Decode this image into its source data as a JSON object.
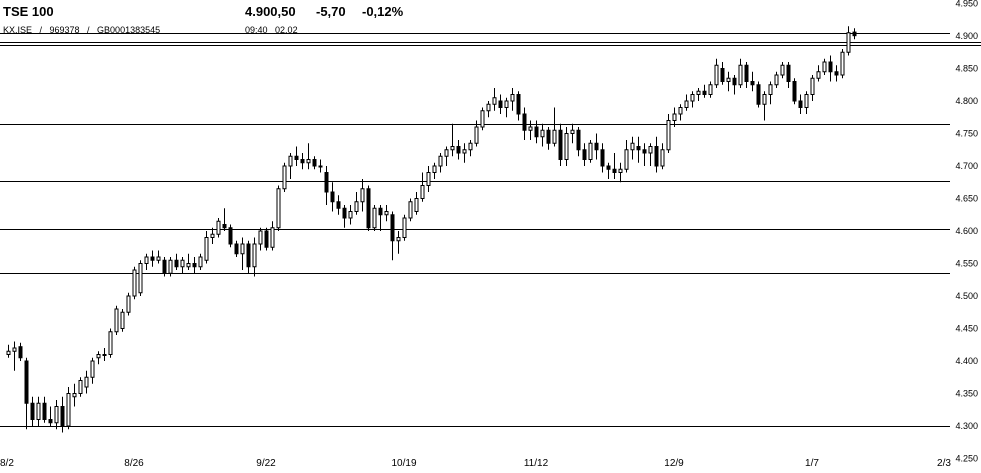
{
  "header": {
    "title": "TSE 100",
    "last": "4.900,50",
    "change": "-5,70",
    "change_pct": "-0,12%",
    "codes": "KX.ISE   /   969378   /   GB0001383545",
    "time": "09:40",
    "date": "02.02"
  },
  "chart_data": {
    "type": "candlestick",
    "title": "",
    "xlabel": "",
    "ylabel": "",
    "ylim": [
      4250,
      4975
    ],
    "y_ticks": [
      4250,
      4300,
      4350,
      4400,
      4450,
      4500,
      4550,
      4600,
      4650,
      4700,
      4750,
      4800,
      4850,
      4900,
      4950
    ],
    "y_tick_labels": [
      "4.250",
      "4.300",
      "4.350",
      "4.400",
      "4.450",
      "4.500",
      "4.550",
      "4.600",
      "4.650",
      "4.700",
      "4.750",
      "4.800",
      "4.850",
      "4.900",
      "4.950"
    ],
    "x_tick_labels": [
      "8/2",
      "8/26",
      "9/22",
      "10/19",
      "11/12",
      "12/9",
      "1/7",
      "2/3"
    ],
    "x_tick_index": [
      0,
      21,
      43,
      66,
      88,
      111,
      134,
      157
    ],
    "horizontal_levels": [
      4300,
      4535,
      4603,
      4677,
      4765,
      4905
    ],
    "last_close": 4900.5,
    "series": [
      {
        "name": "",
        "ohlc": [
          [
            4410,
            4425,
            4405,
            4415
          ],
          [
            4415,
            4430,
            4385,
            4420
          ],
          [
            4422,
            4428,
            4400,
            4405
          ],
          [
            4400,
            4405,
            4295,
            4335
          ],
          [
            4335,
            4345,
            4300,
            4310
          ],
          [
            4310,
            4345,
            4300,
            4335
          ],
          [
            4335,
            4345,
            4305,
            4310
          ],
          [
            4310,
            4330,
            4300,
            4305
          ],
          [
            4305,
            4340,
            4295,
            4330
          ],
          [
            4330,
            4345,
            4290,
            4300
          ],
          [
            4300,
            4360,
            4295,
            4350
          ],
          [
            4345,
            4365,
            4330,
            4350
          ],
          [
            4350,
            4375,
            4345,
            4370
          ],
          [
            4360,
            4385,
            4350,
            4375
          ],
          [
            4375,
            4405,
            4365,
            4400
          ],
          [
            4405,
            4415,
            4395,
            4410
          ],
          [
            4410,
            4420,
            4400,
            4410
          ],
          [
            4410,
            4450,
            4405,
            4445
          ],
          [
            4445,
            4485,
            4440,
            4480
          ],
          [
            4450,
            4480,
            4445,
            4475
          ],
          [
            4475,
            4505,
            4470,
            4500
          ],
          [
            4500,
            4545,
            4495,
            4540
          ],
          [
            4505,
            4555,
            4500,
            4550
          ],
          [
            4550,
            4565,
            4540,
            4560
          ],
          [
            4560,
            4570,
            4545,
            4555
          ],
          [
            4555,
            4570,
            4550,
            4560
          ],
          [
            4555,
            4560,
            4530,
            4535
          ],
          [
            4535,
            4560,
            4530,
            4555
          ],
          [
            4555,
            4565,
            4540,
            4545
          ],
          [
            4545,
            4560,
            4535,
            4555
          ],
          [
            4545,
            4565,
            4540,
            4550
          ],
          [
            4550,
            4560,
            4535,
            4545
          ],
          [
            4545,
            4565,
            4540,
            4560
          ],
          [
            4555,
            4600,
            4550,
            4590
          ],
          [
            4590,
            4605,
            4580,
            4595
          ],
          [
            4595,
            4620,
            4590,
            4615
          ],
          [
            4610,
            4635,
            4600,
            4605
          ],
          [
            4605,
            4610,
            4575,
            4580
          ],
          [
            4580,
            4585,
            4560,
            4565
          ],
          [
            4565,
            4590,
            4540,
            4580
          ],
          [
            4580,
            4585,
            4535,
            4545
          ],
          [
            4545,
            4590,
            4530,
            4580
          ],
          [
            4580,
            4605,
            4570,
            4600
          ],
          [
            4600,
            4605,
            4570,
            4575
          ],
          [
            4575,
            4615,
            4570,
            4605
          ],
          [
            4605,
            4670,
            4600,
            4665
          ],
          [
            4665,
            4705,
            4660,
            4700
          ],
          [
            4700,
            4720,
            4680,
            4715
          ],
          [
            4715,
            4730,
            4700,
            4710
          ],
          [
            4710,
            4720,
            4695,
            4705
          ],
          [
            4705,
            4735,
            4695,
            4710
          ],
          [
            4710,
            4715,
            4695,
            4700
          ],
          [
            4700,
            4710,
            4690,
            4700
          ],
          [
            4690,
            4700,
            4640,
            4660
          ],
          [
            4660,
            4675,
            4630,
            4645
          ],
          [
            4645,
            4655,
            4625,
            4635
          ],
          [
            4635,
            4640,
            4605,
            4620
          ],
          [
            4620,
            4640,
            4610,
            4630
          ],
          [
            4630,
            4660,
            4625,
            4645
          ],
          [
            4645,
            4680,
            4630,
            4665
          ],
          [
            4665,
            4670,
            4600,
            4605
          ],
          [
            4605,
            4640,
            4600,
            4635
          ],
          [
            4635,
            4640,
            4600,
            4625
          ],
          [
            4625,
            4640,
            4615,
            4630
          ],
          [
            4625,
            4630,
            4555,
            4585
          ],
          [
            4585,
            4600,
            4565,
            4590
          ],
          [
            4590,
            4625,
            4585,
            4620
          ],
          [
            4620,
            4650,
            4615,
            4645
          ],
          [
            4630,
            4660,
            4625,
            4650
          ],
          [
            4650,
            4690,
            4645,
            4670
          ],
          [
            4670,
            4700,
            4660,
            4690
          ],
          [
            4690,
            4705,
            4680,
            4700
          ],
          [
            4700,
            4720,
            4690,
            4715
          ],
          [
            4715,
            4730,
            4700,
            4725
          ],
          [
            4725,
            4765,
            4715,
            4730
          ],
          [
            4730,
            4740,
            4710,
            4720
          ],
          [
            4720,
            4735,
            4705,
            4725
          ],
          [
            4725,
            4740,
            4715,
            4735
          ],
          [
            4735,
            4770,
            4730,
            4760
          ],
          [
            4760,
            4790,
            4755,
            4785
          ],
          [
            4785,
            4800,
            4775,
            4795
          ],
          [
            4795,
            4820,
            4785,
            4805
          ],
          [
            4800,
            4810,
            4780,
            4790
          ],
          [
            4790,
            4805,
            4775,
            4800
          ],
          [
            4800,
            4820,
            4785,
            4810
          ],
          [
            4810,
            4815,
            4770,
            4780
          ],
          [
            4780,
            4790,
            4740,
            4755
          ],
          [
            4755,
            4770,
            4740,
            4760
          ],
          [
            4760,
            4770,
            4735,
            4745
          ],
          [
            4745,
            4765,
            4730,
            4755
          ],
          [
            4755,
            4760,
            4725,
            4735
          ],
          [
            4735,
            4790,
            4730,
            4755
          ],
          [
            4755,
            4765,
            4700,
            4710
          ],
          [
            4710,
            4760,
            4700,
            4750
          ],
          [
            4750,
            4765,
            4735,
            4755
          ],
          [
            4755,
            4760,
            4715,
            4725
          ],
          [
            4725,
            4735,
            4700,
            4710
          ],
          [
            4710,
            4740,
            4705,
            4735
          ],
          [
            4735,
            4750,
            4710,
            4725
          ],
          [
            4725,
            4735,
            4690,
            4700
          ],
          [
            4700,
            4705,
            4680,
            4695
          ],
          [
            4695,
            4720,
            4680,
            4690
          ],
          [
            4690,
            4705,
            4675,
            4695
          ],
          [
            4695,
            4740,
            4690,
            4725
          ],
          [
            4725,
            4745,
            4710,
            4735
          ],
          [
            4730,
            4745,
            4705,
            4725
          ],
          [
            4725,
            4735,
            4700,
            4720
          ],
          [
            4720,
            4735,
            4700,
            4730
          ],
          [
            4730,
            4745,
            4690,
            4700
          ],
          [
            4700,
            4735,
            4695,
            4725
          ],
          [
            4725,
            4780,
            4720,
            4770
          ],
          [
            4770,
            4790,
            4760,
            4780
          ],
          [
            4780,
            4795,
            4770,
            4790
          ],
          [
            4790,
            4810,
            4785,
            4800
          ],
          [
            4800,
            4815,
            4790,
            4810
          ],
          [
            4810,
            4820,
            4800,
            4815
          ],
          [
            4815,
            4825,
            4805,
            4810
          ],
          [
            4810,
            4830,
            4805,
            4825
          ],
          [
            4825,
            4865,
            4820,
            4855
          ],
          [
            4850,
            4860,
            4825,
            4830
          ],
          [
            4830,
            4845,
            4815,
            4835
          ],
          [
            4835,
            4840,
            4810,
            4825
          ],
          [
            4825,
            4865,
            4820,
            4855
          ],
          [
            4855,
            4860,
            4820,
            4830
          ],
          [
            4830,
            4845,
            4815,
            4825
          ],
          [
            4825,
            4830,
            4790,
            4795
          ],
          [
            4795,
            4815,
            4770,
            4810
          ],
          [
            4810,
            4830,
            4795,
            4825
          ],
          [
            4825,
            4845,
            4820,
            4840
          ],
          [
            4840,
            4860,
            4835,
            4855
          ],
          [
            4855,
            4860,
            4820,
            4830
          ],
          [
            4830,
            4835,
            4795,
            4800
          ],
          [
            4800,
            4810,
            4780,
            4790
          ],
          [
            4790,
            4815,
            4780,
            4810
          ],
          [
            4810,
            4840,
            4800,
            4835
          ],
          [
            4835,
            4855,
            4830,
            4845
          ],
          [
            4845,
            4865,
            4840,
            4860
          ],
          [
            4860,
            4870,
            4830,
            4845
          ],
          [
            4845,
            4855,
            4830,
            4840
          ],
          [
            4840,
            4880,
            4835,
            4875
          ],
          [
            4875,
            4915,
            4870,
            4905
          ],
          [
            4906,
            4912,
            4895,
            4900.5
          ]
        ]
      }
    ]
  }
}
